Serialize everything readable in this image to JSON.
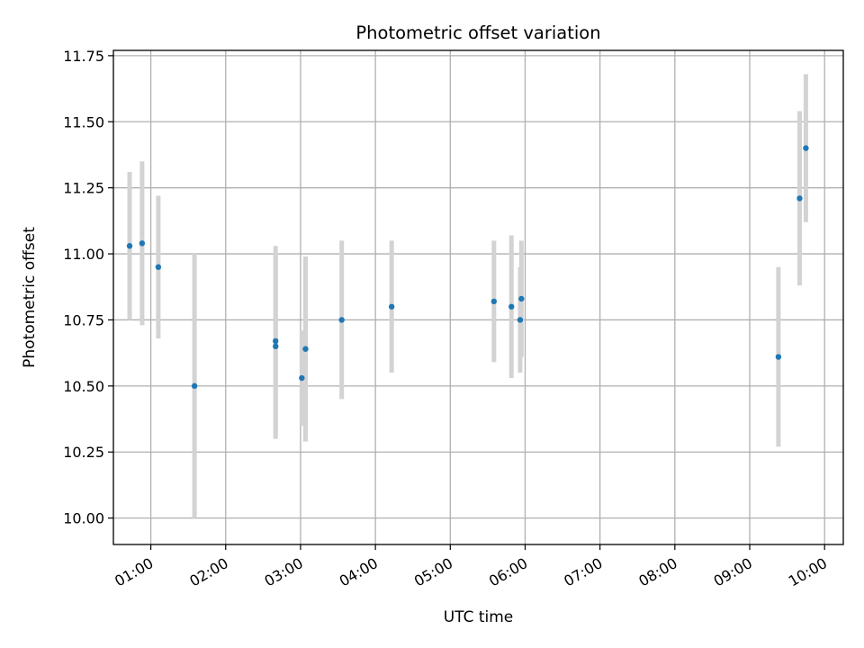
{
  "chart_data": {
    "type": "scatter",
    "title": "Photometric offset variation",
    "xlabel": "UTC time",
    "ylabel": "Photometric offset",
    "xlim": [
      "00:30",
      "10:15"
    ],
    "ylim": [
      9.9,
      11.77
    ],
    "grid": true,
    "x_ticks": [
      "01:00",
      "02:00",
      "03:00",
      "04:00",
      "05:00",
      "06:00",
      "07:00",
      "08:00",
      "09:00",
      "10:00"
    ],
    "y_ticks": [
      "10.00",
      "10.25",
      "10.50",
      "10.75",
      "11.00",
      "11.25",
      "11.50",
      "11.75"
    ],
    "series": [
      {
        "marker_color": "#1f77b4",
        "errorbar_color": "#d3d3d3",
        "points": [
          {
            "x": "00:43",
            "y": 11.03,
            "err": 0.28
          },
          {
            "x": "00:53",
            "y": 11.04,
            "err": 0.31
          },
          {
            "x": "01:06",
            "y": 10.95,
            "err": 0.27
          },
          {
            "x": "01:35",
            "y": 10.5,
            "err": 0.5
          },
          {
            "x": "02:40",
            "y": 10.67,
            "err": 0.36
          },
          {
            "x": "02:40",
            "y": 10.65,
            "err": 0.35
          },
          {
            "x": "03:01",
            "y": 10.53,
            "err": 0.18
          },
          {
            "x": "03:04",
            "y": 10.64,
            "err": 0.35
          },
          {
            "x": "03:33",
            "y": 10.75,
            "err": 0.3
          },
          {
            "x": "04:13",
            "y": 10.8,
            "err": 0.25
          },
          {
            "x": "05:35",
            "y": 10.82,
            "err": 0.23
          },
          {
            "x": "05:49",
            "y": 10.8,
            "err": 0.27
          },
          {
            "x": "05:56",
            "y": 10.75,
            "err": 0.2
          },
          {
            "x": "05:57",
            "y": 10.83,
            "err": 0.22
          },
          {
            "x": "09:23",
            "y": 10.61,
            "err": 0.34
          },
          {
            "x": "09:40",
            "y": 11.21,
            "err": 0.33
          },
          {
            "x": "09:45",
            "y": 11.4,
            "err": 0.28
          }
        ]
      }
    ]
  }
}
